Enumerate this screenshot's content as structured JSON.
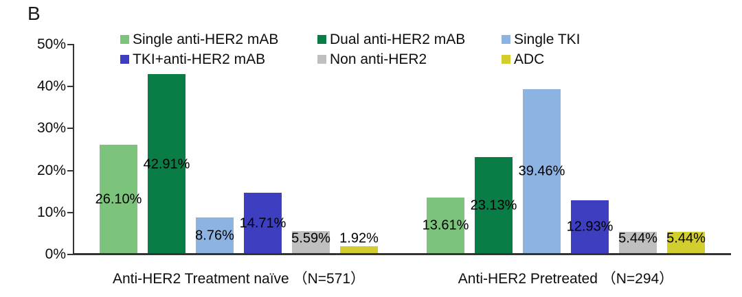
{
  "panel_label": "B",
  "chart_data": {
    "type": "bar",
    "title": "",
    "xlabel": "",
    "ylabel": "",
    "ylim": [
      0,
      50
    ],
    "y_ticks": [
      {
        "value": 0,
        "label": "0%"
      },
      {
        "value": 10,
        "label": "10%"
      },
      {
        "value": 20,
        "label": "20%"
      },
      {
        "value": 30,
        "label": "30%"
      },
      {
        "value": 40,
        "label": "40%"
      },
      {
        "value": 50,
        "label": "50%"
      }
    ],
    "grid": false,
    "legend_position": "top",
    "legend_columns": 3,
    "categories": [
      "Anti-HER2 Treatment naïve （N=571）",
      "Anti-HER2 Pretreated （N=294）"
    ],
    "series": [
      {
        "name": "Single anti-HER2 mAB",
        "color": "#7cc47c",
        "values": [
          26.1,
          13.61
        ],
        "labels": [
          "26.10%",
          "13.61%"
        ]
      },
      {
        "name": "Dual anti-HER2 mAB",
        "color": "#0a7d46",
        "values": [
          42.91,
          23.13
        ],
        "labels": [
          "42.91%",
          "23.13%"
        ]
      },
      {
        "name": "Single TKI",
        "color": "#8db3e2",
        "values": [
          8.76,
          39.46
        ],
        "labels": [
          "8.76%",
          "39.46%"
        ]
      },
      {
        "name": "TKI+anti-HER2 mAB",
        "color": "#3e3ec1",
        "values": [
          14.71,
          12.93
        ],
        "labels": [
          "14.71%",
          "12.93%"
        ]
      },
      {
        "name": "Non anti-HER2",
        "color": "#bfbfbf",
        "values": [
          5.59,
          5.44
        ],
        "labels": [
          "5.59%",
          "5.44%"
        ]
      },
      {
        "name": "ADC",
        "color": "#d1ce2d",
        "values": [
          1.92,
          5.44
        ],
        "labels": [
          "1.92%",
          "5.44%"
        ]
      }
    ]
  }
}
